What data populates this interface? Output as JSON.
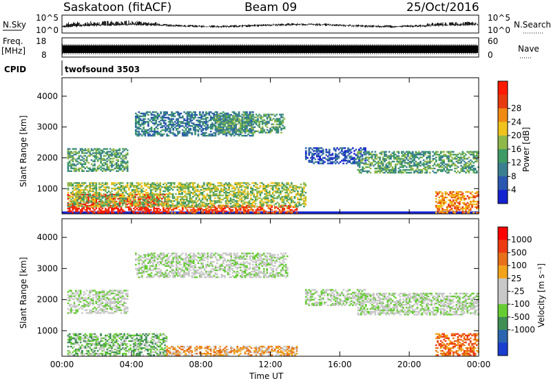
{
  "header": {
    "station": "Saskatoon (fitACF)",
    "beam": "Beam 09",
    "date": "25/Oct/2016"
  },
  "strip_labels": {
    "nsky": "N.Sky",
    "nsky_top": "10^5",
    "nsky_bottom": "10^0",
    "nsearch": "N.Search",
    "nsearch_top": "10^5",
    "nsearch_bottom": "10^0",
    "freq_line1": "Freq.",
    "freq_line2": "[MHz]",
    "freq_top": "18",
    "freq_bottom": "8",
    "nave": "Nave",
    "nave_top": "60",
    "nave_bottom": "0",
    "cpid": "CPID",
    "program": "twofsound 3503"
  },
  "colors": {
    "power": [
      "#1522d0",
      "#2a57b0",
      "#3a7f8f",
      "#3f9b66",
      "#8fb84a",
      "#f0c21c",
      "#f08a14",
      "#e83a10",
      "#ff1a00"
    ],
    "velocity": [
      "#1a3fd0",
      "#2a65b0",
      "#3f8f55",
      "#66cc33",
      "#c8c8c8",
      "#c8c8c8",
      "#f2a31a",
      "#e8701a",
      "#ee3a12",
      "#ff0000"
    ]
  },
  "chart_data": [
    {
      "type": "heatmap",
      "name": "power",
      "ylabel": "Slant Range [km]",
      "xlabel": "Time UT",
      "x_ticks": [
        "00:00",
        "04:00",
        "08:00",
        "12:00",
        "16:00",
        "20:00",
        "00:00"
      ],
      "y_ticks": [
        "1000",
        "2000",
        "3000",
        "4000"
      ],
      "xlim_hours": [
        0,
        24
      ],
      "ylim_km": [
        180,
        4600
      ],
      "colorbar": {
        "label": "Power [dB]",
        "ticks": [
          "4",
          "8",
          "12",
          "16",
          "20",
          "24",
          "28"
        ]
      },
      "echo_regions": [
        {
          "t": [
            0.3,
            6.0
          ],
          "r": [
            200,
            800
          ],
          "level": 8
        },
        {
          "t": [
            6.0,
            13.5
          ],
          "r": [
            200,
            450
          ],
          "level": 7
        },
        {
          "t": [
            0.3,
            14.0
          ],
          "r": [
            400,
            1200
          ],
          "level": 4
        },
        {
          "t": [
            0.3,
            3.8
          ],
          "r": [
            1550,
            2300
          ],
          "level": 3
        },
        {
          "t": [
            4.2,
            11.0
          ],
          "r": [
            2700,
            3500
          ],
          "level": 2
        },
        {
          "t": [
            8.8,
            12.8
          ],
          "r": [
            2800,
            3400
          ],
          "level": 3
        },
        {
          "t": [
            14.0,
            17.5
          ],
          "r": [
            1800,
            2300
          ],
          "level": 1
        },
        {
          "t": [
            17.0,
            24.0
          ],
          "r": [
            1500,
            2200
          ],
          "level": 3
        },
        {
          "t": [
            21.5,
            24.0
          ],
          "r": [
            200,
            900
          ],
          "level": 6
        }
      ]
    },
    {
      "type": "heatmap",
      "name": "velocity",
      "ylabel": "Slant Range [km]",
      "xlabel": "Time UT",
      "x_ticks": [
        "00:00",
        "04:00",
        "08:00",
        "12:00",
        "16:00",
        "20:00",
        "00:00"
      ],
      "y_ticks": [
        "1000",
        "2000",
        "3000",
        "4000"
      ],
      "xlim_hours": [
        0,
        24
      ],
      "ylim_km": [
        180,
        4600
      ],
      "colorbar": {
        "label": "Velocity [m s⁻¹]",
        "ticks": [
          "1000",
          "500",
          "100",
          "25",
          "-25",
          "-100",
          "-500",
          "-1000"
        ]
      },
      "echo_regions": [
        {
          "t": [
            0.3,
            6.0
          ],
          "r": [
            200,
            900
          ],
          "level": 3
        },
        {
          "t": [
            6.0,
            13.5
          ],
          "r": [
            200,
            500
          ],
          "level": 6
        },
        {
          "t": [
            0.3,
            3.8
          ],
          "r": [
            1550,
            2300
          ],
          "level": 4
        },
        {
          "t": [
            4.2,
            13.0
          ],
          "r": [
            2700,
            3500
          ],
          "level": 4
        },
        {
          "t": [
            14.0,
            17.5
          ],
          "r": [
            1800,
            2300
          ],
          "level": 4
        },
        {
          "t": [
            17.0,
            24.0
          ],
          "r": [
            1500,
            2200
          ],
          "level": 4
        },
        {
          "t": [
            21.5,
            24.0
          ],
          "r": [
            200,
            900
          ],
          "level": 7
        }
      ]
    }
  ]
}
